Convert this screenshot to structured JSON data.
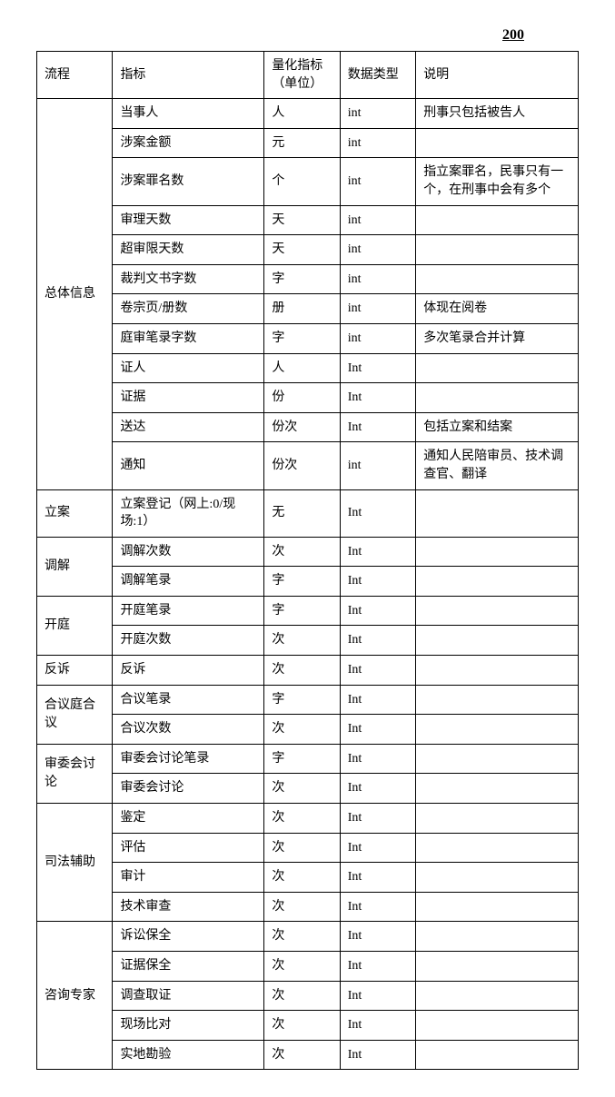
{
  "page_number": "200",
  "table": {
    "columns": [
      "流程",
      "指标",
      "量化指标（单位）",
      "数据类型",
      "说明"
    ],
    "column_widths_percent": [
      14,
      28,
      14,
      14,
      30
    ],
    "border_color": "#000000",
    "background_color": "#ffffff",
    "font_size": 14,
    "groups": [
      {
        "process": "总体信息",
        "rows": [
          {
            "indicator": "当事人",
            "unit": "人",
            "type": "int",
            "desc": "刑事只包括被告人"
          },
          {
            "indicator": "涉案金额",
            "unit": "元",
            "type": "int",
            "desc": ""
          },
          {
            "indicator": "涉案罪名数",
            "unit": "个",
            "type": "int",
            "desc": "指立案罪名，民事只有一个，在刑事中会有多个"
          },
          {
            "indicator": "审理天数",
            "unit": "天",
            "type": "int",
            "desc": ""
          },
          {
            "indicator": "超审限天数",
            "unit": "天",
            "type": "int",
            "desc": ""
          },
          {
            "indicator": "裁判文书字数",
            "unit": "字",
            "type": "int",
            "desc": ""
          },
          {
            "indicator": "卷宗页/册数",
            "unit": "册",
            "type": "int",
            "desc": "体现在阅卷"
          },
          {
            "indicator": "庭审笔录字数",
            "unit": "字",
            "type": "int",
            "desc": "多次笔录合并计算"
          },
          {
            "indicator": "证人",
            "unit": "人",
            "type": "Int",
            "desc": ""
          },
          {
            "indicator": "证据",
            "unit": "份",
            "type": "Int",
            "desc": ""
          },
          {
            "indicator": "送达",
            "unit": "份次",
            "type": "Int",
            "desc": "包括立案和结案"
          },
          {
            "indicator": "通知",
            "unit": "份次",
            "type": "int",
            "desc": "通知人民陪审员、技术调查官、翻译"
          }
        ]
      },
      {
        "process": "立案",
        "rows": [
          {
            "indicator": "立案登记（网上:0/现场:1）",
            "unit": "无",
            "type": "Int",
            "desc": ""
          }
        ]
      },
      {
        "process": "调解",
        "rows": [
          {
            "indicator": "调解次数",
            "unit": "次",
            "type": "Int",
            "desc": ""
          },
          {
            "indicator": "调解笔录",
            "unit": "字",
            "type": "Int",
            "desc": ""
          }
        ]
      },
      {
        "process": "开庭",
        "rows": [
          {
            "indicator": "开庭笔录",
            "unit": "字",
            "type": "Int",
            "desc": ""
          },
          {
            "indicator": "开庭次数",
            "unit": "次",
            "type": "Int",
            "desc": ""
          }
        ]
      },
      {
        "process": "反诉",
        "rows": [
          {
            "indicator": "反诉",
            "unit": "次",
            "type": "Int",
            "desc": ""
          }
        ]
      },
      {
        "process": "合议庭合议",
        "rows": [
          {
            "indicator": "合议笔录",
            "unit": "字",
            "type": "Int",
            "desc": ""
          },
          {
            "indicator": "合议次数",
            "unit": "次",
            "type": "Int",
            "desc": ""
          }
        ]
      },
      {
        "process": "审委会讨论",
        "rows": [
          {
            "indicator": "审委会讨论笔录",
            "unit": "字",
            "type": "Int",
            "desc": ""
          },
          {
            "indicator": "审委会讨论",
            "unit": "次",
            "type": "Int",
            "desc": ""
          }
        ]
      },
      {
        "process": "司法辅助",
        "rows": [
          {
            "indicator": "鉴定",
            "unit": "次",
            "type": "Int",
            "desc": ""
          },
          {
            "indicator": "评估",
            "unit": "次",
            "type": "Int",
            "desc": ""
          },
          {
            "indicator": "审计",
            "unit": "次",
            "type": "Int",
            "desc": ""
          },
          {
            "indicator": "技术审查",
            "unit": "次",
            "type": "Int",
            "desc": ""
          }
        ]
      },
      {
        "process": "咨询专家",
        "rows": [
          {
            "indicator": "诉讼保全",
            "unit": "次",
            "type": "Int",
            "desc": ""
          },
          {
            "indicator": "证据保全",
            "unit": "次",
            "type": "Int",
            "desc": ""
          },
          {
            "indicator": "调查取证",
            "unit": "次",
            "type": "Int",
            "desc": ""
          },
          {
            "indicator": "现场比对",
            "unit": "次",
            "type": "Int",
            "desc": ""
          },
          {
            "indicator": "实地勘验",
            "unit": "次",
            "type": "Int",
            "desc": ""
          }
        ]
      }
    ]
  }
}
